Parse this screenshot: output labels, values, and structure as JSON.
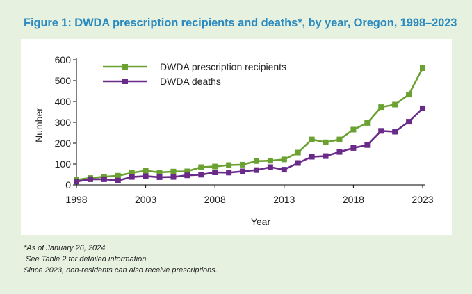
{
  "title": "Figure 1: DWDA prescription recipients and deaths*, by year, Oregon, 1998–2023",
  "notes": [
    "*As of January 26, 2024",
    " See Table 2 for detailed information",
    "Since 2023, non-residents can also receive prescriptions."
  ],
  "chart_data": {
    "type": "line",
    "title": "",
    "xlabel": "Year",
    "ylabel": "Number",
    "xlim": [
      1998,
      2023
    ],
    "ylim": [
      0,
      600
    ],
    "xticks": [
      1998,
      2003,
      2008,
      2013,
      2018,
      2023
    ],
    "yticks": [
      0,
      100,
      200,
      300,
      400,
      500,
      600
    ],
    "grid": false,
    "legend_position": "top-left",
    "x": [
      1998,
      1999,
      2000,
      2001,
      2002,
      2003,
      2004,
      2005,
      2006,
      2007,
      2008,
      2009,
      2010,
      2011,
      2012,
      2013,
      2014,
      2015,
      2016,
      2017,
      2018,
      2019,
      2020,
      2021,
      2022,
      2023
    ],
    "series": [
      {
        "name": "DWDA prescription recipients",
        "color": "#6aa131",
        "values": [
          24,
          33,
          39,
          44,
          58,
          68,
          60,
          64,
          65,
          85,
          88,
          95,
          97,
          114,
          116,
          122,
          155,
          218,
          204,
          218,
          265,
          297,
          373,
          385,
          433,
          560
        ]
      },
      {
        "name": "DWDA deaths",
        "color": "#6a2a8a",
        "values": [
          16,
          27,
          27,
          21,
          38,
          42,
          37,
          38,
          46,
          49,
          60,
          59,
          65,
          71,
          85,
          73,
          105,
          135,
          138,
          158,
          177,
          191,
          259,
          255,
          303,
          367
        ]
      }
    ]
  }
}
